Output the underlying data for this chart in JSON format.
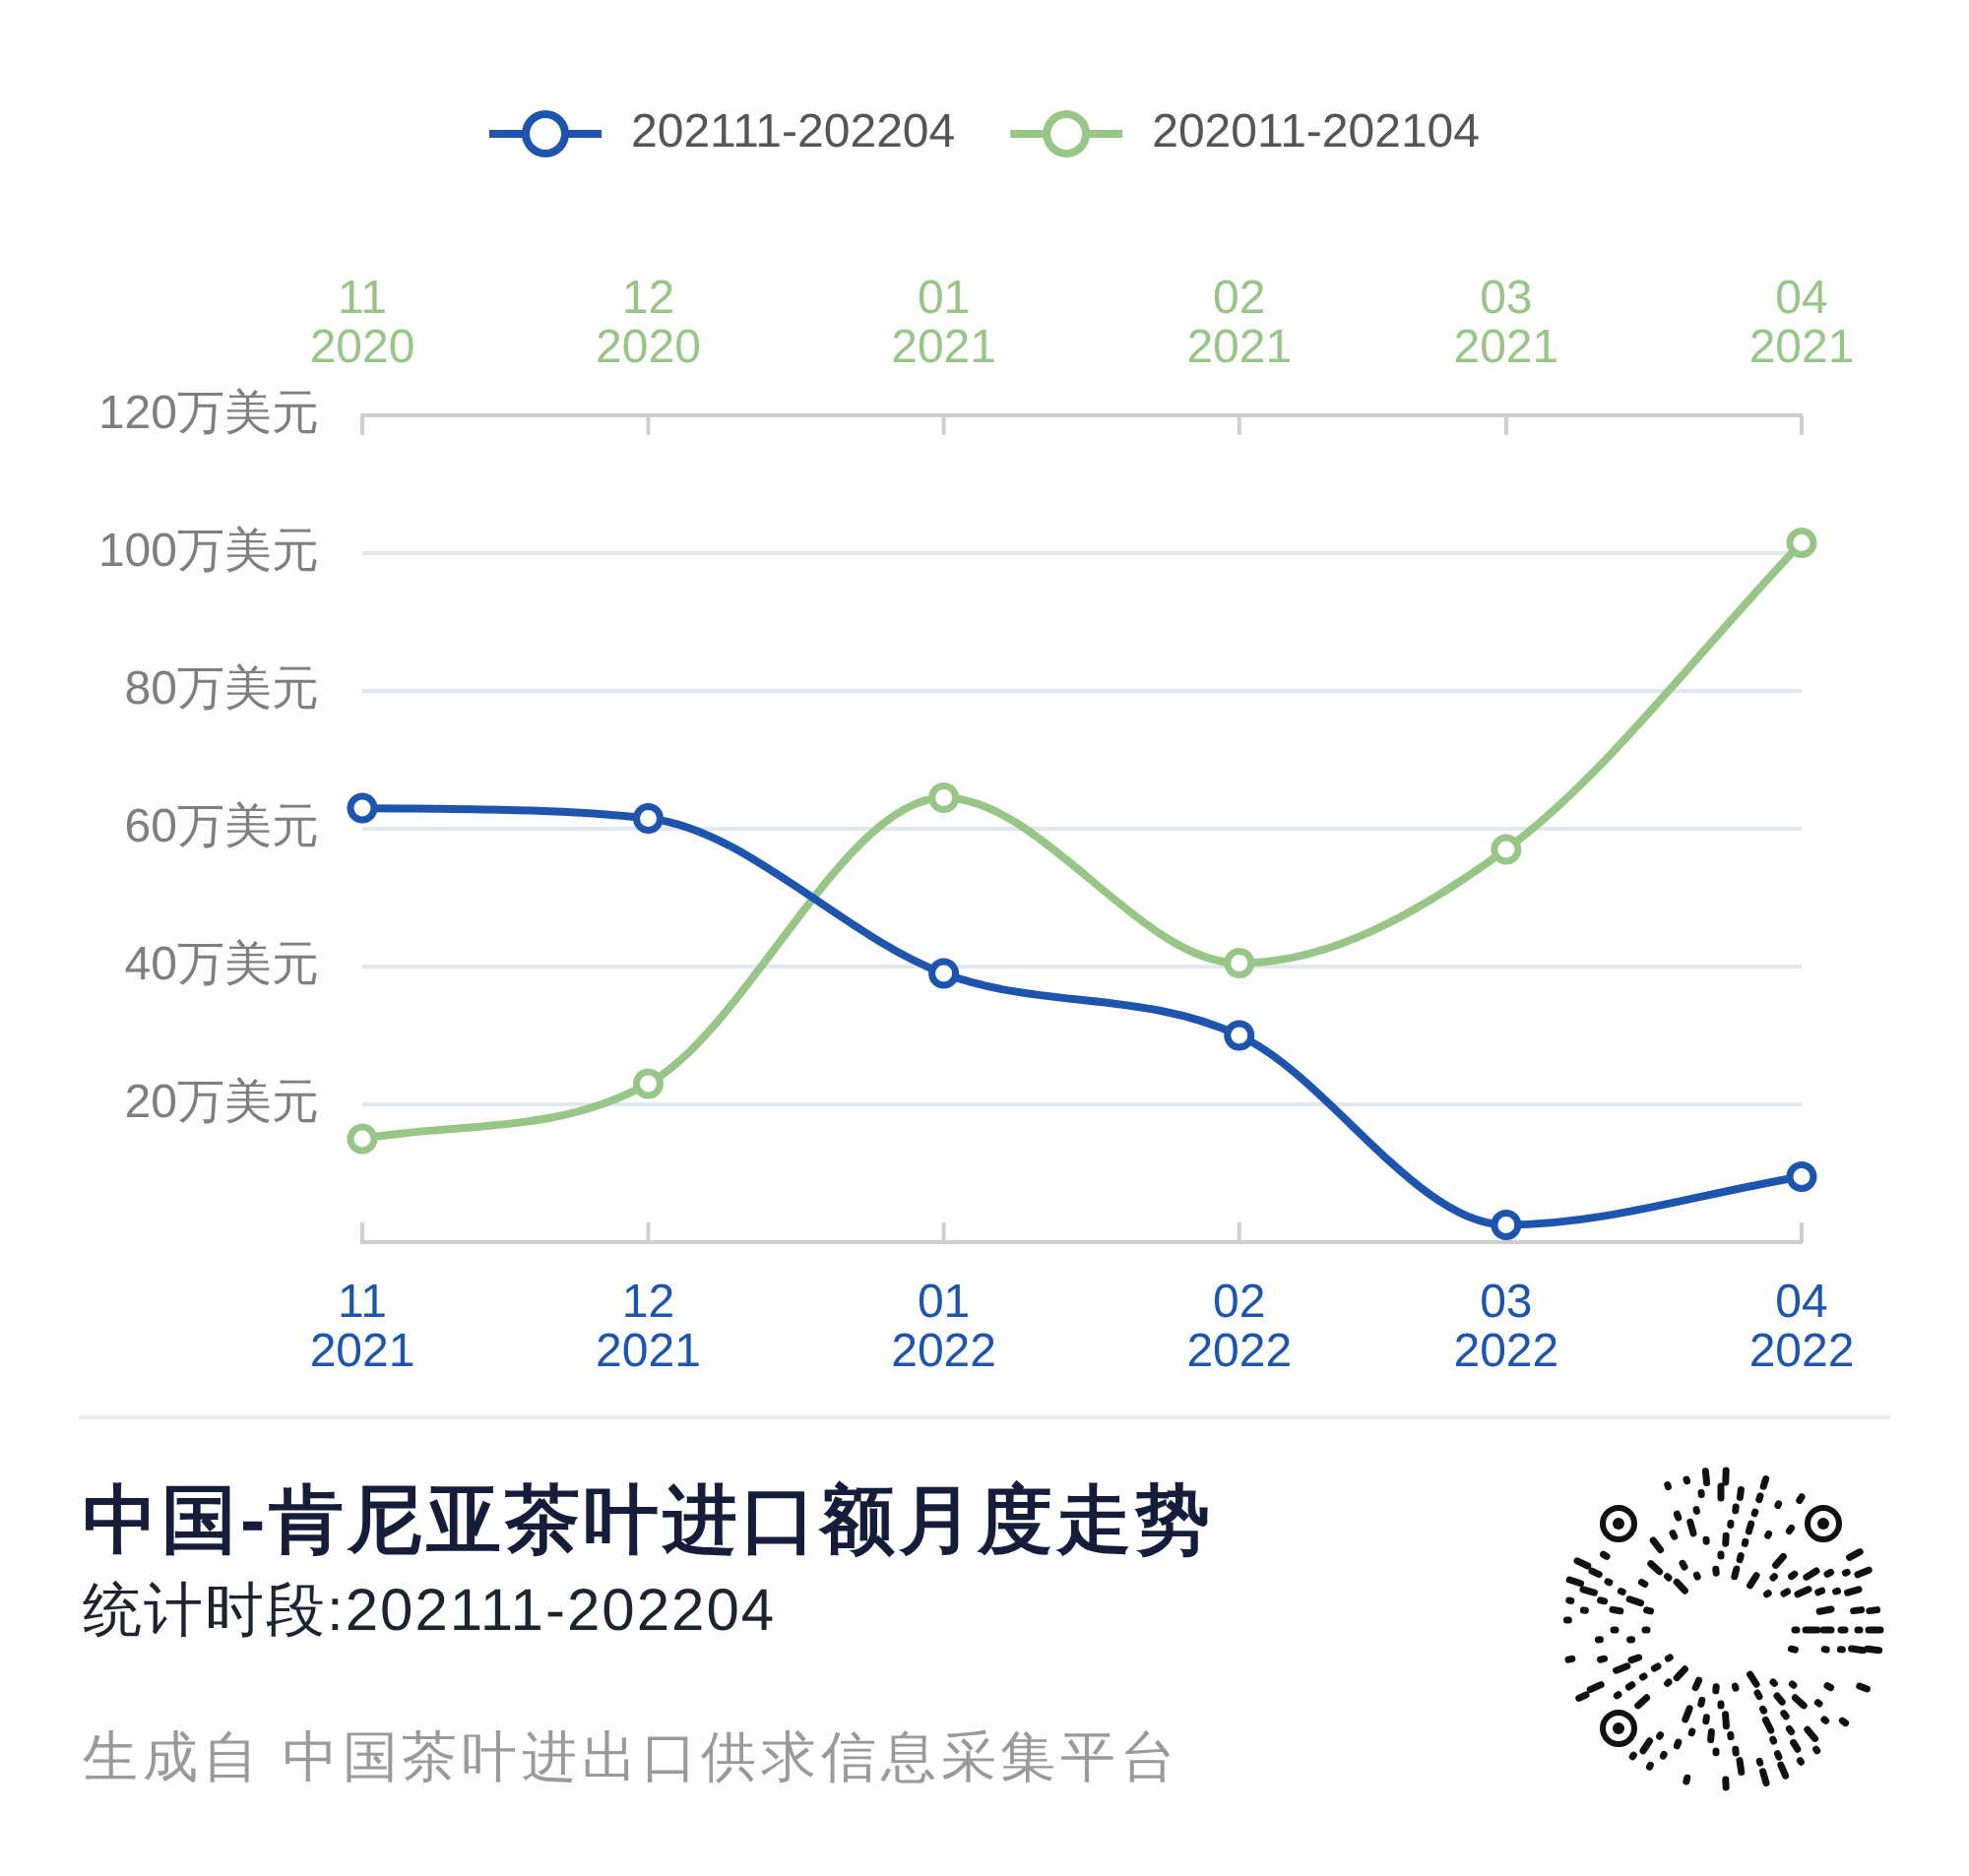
{
  "chart_data": {
    "type": "line",
    "title": "中国-肯尼亚茶叶进口额月度走势",
    "subtitle": "统计时段:202111-202204",
    "annotations": [
      "生成自 中国茶叶进出口供求信息采集平台"
    ],
    "xlim": [
      "2021-11",
      "2022-04"
    ],
    "xticks": [
      {
        "value": "2021-11",
        "label": "11\n2021"
      },
      {
        "value": "2021-12",
        "label": "12\n2021"
      },
      {
        "value": "2022-01",
        "label": "01\n2022"
      },
      {
        "value": "2022-02",
        "label": "02\n2022"
      },
      {
        "value": "2022-03",
        "label": "03\n2022"
      },
      {
        "value": "2022-04",
        "label": "04\n2022"
      }
    ],
    "x2lim": [
      "2020-11",
      "2021-04"
    ],
    "x2ticks": [
      {
        "value": "2020-11",
        "label": "11\n2020"
      },
      {
        "value": "2020-12",
        "label": "12\n2020"
      },
      {
        "value": "2021-01",
        "label": "01\n2021"
      },
      {
        "value": "2021-02",
        "label": "02\n2021"
      },
      {
        "value": "2021-03",
        "label": "03\n2021"
      },
      {
        "value": "2021-04",
        "label": "04\n2021"
      }
    ],
    "ylim": [
      0,
      120
    ],
    "yticks": [
      {
        "value": 20,
        "label": "20万美元"
      },
      {
        "value": 40,
        "label": "40万美元"
      },
      {
        "value": 60,
        "label": "60万美元"
      },
      {
        "value": 80,
        "label": "80万美元"
      },
      {
        "value": 100,
        "label": "100万美元"
      },
      {
        "value": 120,
        "label": "120万美元"
      }
    ],
    "series": [
      {
        "name": "202111-202204",
        "color": "#1d55ae",
        "x": [
          "2021-11",
          "2021-12",
          "2022-01",
          "2022-02",
          "2022-03",
          "2022-04"
        ],
        "values": [
          63,
          61.5,
          39,
          30,
          2.5,
          9.5
        ]
      },
      {
        "name": "202011-202104",
        "color": "#98c687",
        "axis": "x2",
        "x": [
          "2020-11",
          "2020-12",
          "2021-01",
          "2021-02",
          "2021-03",
          "2021-04"
        ],
        "values": [
          15,
          23,
          64.5,
          40.5,
          57,
          101.5
        ]
      }
    ],
    "grid": "y",
    "legend": "top",
    "marker": "circle",
    "line_style": "solid"
  }
}
